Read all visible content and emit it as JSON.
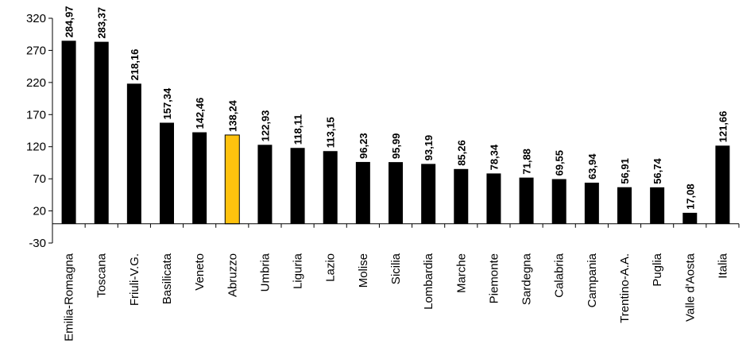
{
  "chart_data": {
    "type": "bar",
    "title": "",
    "xlabel": "",
    "ylabel": "",
    "ylim": [
      -30,
      320
    ],
    "yticks": [
      -30,
      20,
      70,
      120,
      170,
      220,
      270,
      320
    ],
    "grid": false,
    "legend": "none",
    "categories": [
      "Emilia-Romagna",
      "Toscana",
      "Friuli-V.G.",
      "Basilicata",
      "Veneto",
      "Abruzzo",
      "Umbria",
      "Liguria",
      "Lazio",
      "Molise",
      "Sicilia",
      "Lombardia",
      "Marche",
      "Piemonte",
      "Sardegna",
      "Calabria",
      "Campania",
      "Trentino-A.A.",
      "Puglia",
      "Valle d'Aosta",
      "Italia"
    ],
    "values": [
      284.97,
      283.37,
      218.16,
      157.34,
      142.46,
      138.24,
      122.93,
      118.11,
      113.15,
      96.23,
      95.99,
      93.19,
      85.26,
      78.34,
      71.88,
      69.55,
      63.94,
      56.91,
      56.74,
      17.08,
      121.66
    ],
    "value_labels": [
      "284,97",
      "283,37",
      "218,16",
      "157,34",
      "142,46",
      "138,24",
      "122,93",
      "118,11",
      "113,15",
      "96,23",
      "95,99",
      "93,19",
      "85,26",
      "78,34",
      "71,88",
      "69,55",
      "63,94",
      "56,91",
      "56,74",
      "17,08",
      "121,66"
    ],
    "highlight_category": "Abruzzo",
    "colors": {
      "bar": "#000000",
      "highlight": "#FFC20E",
      "axis": "#000000"
    }
  }
}
